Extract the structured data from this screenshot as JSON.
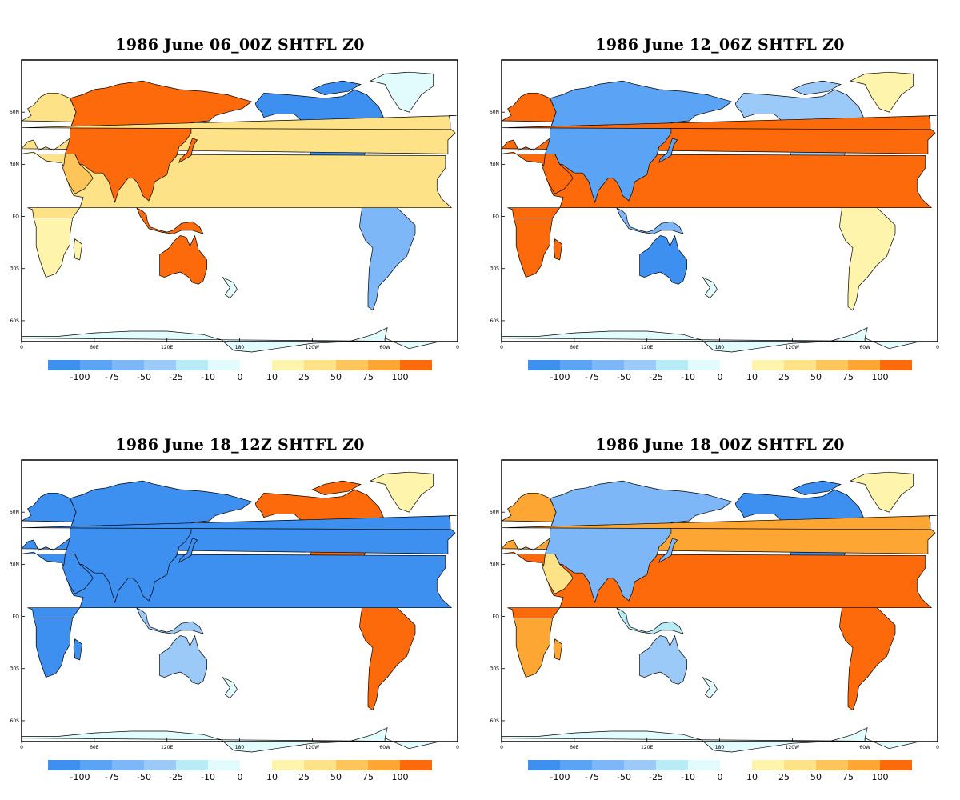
{
  "colors": {
    "neg": [
      "#3d8ff0",
      "#5aa3f5",
      "#7db7f7",
      "#9ccaf8",
      "#b7ecf7",
      "#e2fbfd"
    ],
    "pos": [
      "#fff4ab",
      "#fee287",
      "#fec65a",
      "#fda633",
      "#fd6a0c"
    ],
    "coast": "#000000",
    "frame": "#000000"
  },
  "colorbar": {
    "neg_labels": [
      "-100",
      "-75",
      "-50",
      "-25",
      "-10",
      "0"
    ],
    "pos_labels": [
      "10",
      "25",
      "50",
      "75",
      "100"
    ]
  },
  "axes": {
    "lon_ticks": [
      "0",
      "60E",
      "120E",
      "180",
      "120W",
      "60W",
      "0"
    ],
    "lat_ticks": [
      "60N",
      "30N",
      "EQ",
      "30S",
      "60S"
    ]
  },
  "panels": [
    {
      "title": "1986 June 06_00Z SHTFL Z0",
      "regions": {
        "europe": "pos1",
        "africa_north": "pos1",
        "africa_south": "pos0",
        "arabia": "pos2",
        "asia": "pos4",
        "se_asia": "pos4",
        "australia": "pos4",
        "north_america": "neg0",
        "greenland": "neg5",
        "south_america": "neg2",
        "antarctica": "neg5"
      }
    },
    {
      "title": "1986 June 12_06Z SHTFL Z0",
      "regions": {
        "europe": "pos4",
        "africa_north": "pos4",
        "africa_south": "pos4",
        "arabia": "pos4",
        "asia": "neg1",
        "se_asia": "neg2",
        "australia": "neg0",
        "north_america": "neg3",
        "greenland": "pos0",
        "south_america": "pos0",
        "antarctica": "neg5"
      }
    },
    {
      "title": "1986 June 18_12Z SHTFL Z0",
      "regions": {
        "europe": "neg0",
        "africa_north": "neg0",
        "africa_south": "neg0",
        "arabia": "neg0",
        "asia": "neg0",
        "se_asia": "neg3",
        "australia": "neg3",
        "north_america": "pos4",
        "greenland": "pos0",
        "south_america": "pos4",
        "antarctica": "neg5"
      }
    },
    {
      "title": "1986 June 18_00Z SHTFL Z0",
      "regions": {
        "europe": "pos3",
        "africa_north": "pos4",
        "africa_south": "pos3",
        "arabia": "pos1",
        "asia": "neg2",
        "se_asia": "neg4",
        "australia": "neg3",
        "north_america": "neg0",
        "greenland": "pos0",
        "south_america": "pos4",
        "antarctica": "neg5"
      }
    }
  ]
}
